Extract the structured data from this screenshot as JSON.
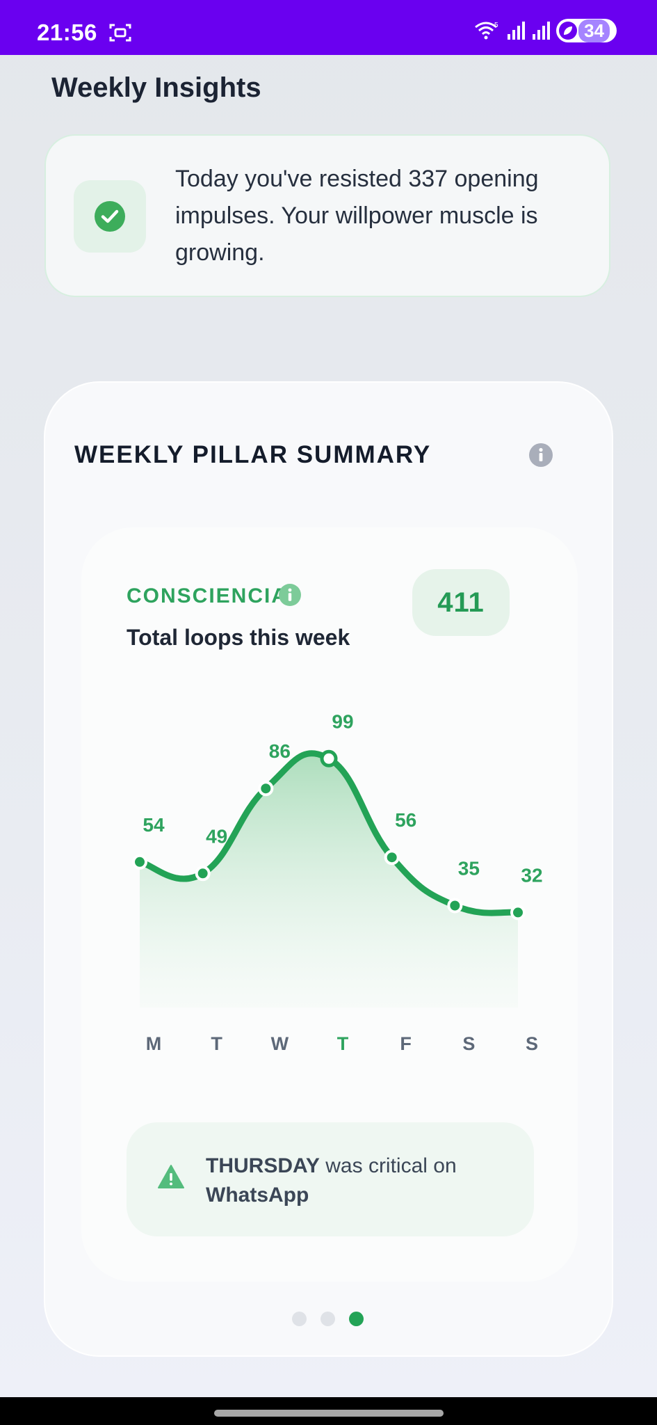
{
  "status_bar": {
    "time": "21:56",
    "battery": "34",
    "icons": [
      "screenshot-icon",
      "wifi-icon",
      "signal-icon",
      "signal-icon",
      "battery-saver-icon"
    ],
    "color": "#6a00f0"
  },
  "page": {
    "title": "Weekly Insights"
  },
  "tip": {
    "text": "Today you've resisted 337 opening impulses. Your willpower muscle is growing.",
    "icon": "check-circle-icon"
  },
  "pillar_summary": {
    "title": "WEEKLY PILLAR SUMMARY",
    "info_icon": "info-icon",
    "pillar": {
      "label": "CONSCIENCIA",
      "subtitle": "Total loops this week",
      "total": "411",
      "accent": "#2ea35e"
    },
    "critical": {
      "day": "THURSDAY",
      "middle": " was critical on ",
      "app": "WhatsApp",
      "icon": "warning-icon"
    },
    "pagination": {
      "count": 3,
      "active_index": 2
    }
  },
  "chart_data": {
    "type": "area",
    "categories": [
      "M",
      "T",
      "W",
      "T",
      "F",
      "S",
      "S"
    ],
    "values": [
      54,
      49,
      86,
      99,
      56,
      35,
      32
    ],
    "highlight_index": 3,
    "title": "",
    "xlabel": "",
    "ylabel": "",
    "grid": false,
    "line_color": "#23a356"
  }
}
